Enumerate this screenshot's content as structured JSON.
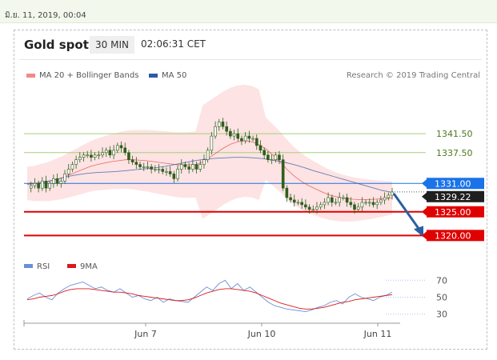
{
  "timestamp": "มิ.ย. 11, 2019, 00:04",
  "header": {
    "title": "Gold spot",
    "interval": "30 MIN",
    "time": "02:06:31 CET"
  },
  "legend": {
    "ma20": {
      "label": "MA 20 + Bollinger Bands",
      "color": "#f08a8a"
    },
    "ma50": {
      "label": "MA 50",
      "color": "#2e5aa8"
    },
    "credit": "Research © 2019 Trading Central"
  },
  "rsi_legend": {
    "rsi": {
      "label": "RSI",
      "color": "#6a8fd8"
    },
    "ma9": {
      "label": "9MA",
      "color": "#d91a1a"
    }
  },
  "colors": {
    "candle": "#2f5e1e",
    "band": "#fde3e3",
    "support": "#e00000",
    "resistance": "#a8cf7a",
    "pivot": "#1a73e8",
    "arrow": "#2a5fa0",
    "rsi_ref": "#aac4ee"
  },
  "chart_data": [
    {
      "type": "line",
      "title": "Gold spot",
      "x_ticks": [
        "Jun 7",
        "Jun 10",
        "Jun 11"
      ],
      "ylim": [
        1316,
        1352
      ],
      "levels": [
        {
          "label": "1341.50",
          "value": 1341.5,
          "kind": "resistance"
        },
        {
          "label": "1337.50",
          "value": 1337.5,
          "kind": "resistance"
        },
        {
          "label": "1331.00",
          "value": 1331.0,
          "kind": "pivot"
        },
        {
          "label": "1329.22",
          "value": 1329.22,
          "kind": "last"
        },
        {
          "label": "1325.00",
          "value": 1325.0,
          "kind": "support"
        },
        {
          "label": "1320.00",
          "value": 1320.0,
          "kind": "support"
        }
      ],
      "price_series": [
        1330,
        1330.5,
        1331,
        1330,
        1331.5,
        1330,
        1331,
        1332,
        1331,
        1331.5,
        1333,
        1334,
        1335,
        1336,
        1336.5,
        1337,
        1337,
        1336.5,
        1337,
        1337,
        1337.5,
        1338,
        1337,
        1338,
        1339,
        1338.5,
        1337.5,
        1336,
        1335.5,
        1335,
        1334.5,
        1334.5,
        1334.5,
        1334,
        1334,
        1334,
        1333.5,
        1333.5,
        1333,
        1332,
        1334,
        1335,
        1334.5,
        1334,
        1335,
        1334,
        1335,
        1336,
        1338,
        1341,
        1343,
        1344,
        1343,
        1342,
        1341,
        1341.5,
        1340.5,
        1340,
        1341,
        1340.5,
        1340.5,
        1339,
        1338,
        1337,
        1336,
        1336,
        1337,
        1336,
        1330,
        1328,
        1327.5,
        1327,
        1327,
        1326.5,
        1326,
        1325.5,
        1325.5,
        1326,
        1326.5,
        1327,
        1328,
        1327,
        1327,
        1328,
        1328,
        1327,
        1326.5,
        1325.5,
        1326,
        1327,
        1327,
        1327,
        1326.5,
        1327,
        1327.5,
        1328,
        1328.5,
        1329.2
      ],
      "ma20_series": [
        1331,
        1331,
        1331.2,
        1331.4,
        1331.8,
        1332.2,
        1332.8,
        1333.4,
        1334,
        1334.6,
        1335,
        1335.3,
        1335.6,
        1335.8,
        1336,
        1336,
        1335.9,
        1335.8,
        1335.6,
        1335.4,
        1335.2,
        1335,
        1334.9,
        1334.9,
        1335,
        1335.5,
        1336.5,
        1337.5,
        1338.5,
        1339.3,
        1339.8,
        1340,
        1339.8,
        1339.2,
        1338.3,
        1337,
        1335.6,
        1334,
        1332.6,
        1331.5,
        1330.6,
        1329.9,
        1329.2,
        1328.6,
        1328.2,
        1327.9,
        1327.7,
        1327.6,
        1327.6,
        1327.6,
        1327.7,
        1327.8,
        1327.9
      ],
      "ma50_series": [
        1330.8,
        1331,
        1331.4,
        1331.9,
        1332.4,
        1332.8,
        1333.1,
        1333.3,
        1333.4,
        1333.5,
        1333.7,
        1333.9,
        1334.1,
        1334.3,
        1334.6,
        1335,
        1335.4,
        1335.8,
        1336.1,
        1336.3,
        1336.4,
        1336.5,
        1336.5,
        1336.4,
        1336.2,
        1335.9,
        1335.5,
        1335,
        1334.4,
        1333.7,
        1333.1,
        1332.5,
        1331.9,
        1331.3,
        1330.7,
        1330.1,
        1329.5,
        1329.1
      ],
      "rsi": {
        "ylim": [
          25,
          75
        ],
        "ticks": [
          "70",
          "50",
          "30"
        ],
        "tick_values": [
          70,
          50,
          30
        ],
        "rsi_series": [
          48,
          52,
          55,
          50,
          47,
          55,
          60,
          64,
          66,
          68,
          64,
          60,
          62,
          58,
          56,
          60,
          55,
          50,
          52,
          48,
          46,
          50,
          44,
          48,
          46,
          45,
          44,
          50,
          56,
          62,
          58,
          66,
          70,
          60,
          66,
          58,
          62,
          56,
          50,
          44,
          40,
          38,
          36,
          35,
          34,
          33,
          35,
          38,
          40,
          44,
          46,
          42,
          50,
          54,
          50,
          48,
          46,
          50,
          52,
          56
        ],
        "ma9_series": [
          47,
          48,
          50,
          51,
          52,
          54,
          57,
          59,
          60,
          60,
          60,
          59,
          58,
          57,
          56,
          56,
          55,
          54,
          52,
          51,
          50,
          49,
          48,
          47,
          46,
          46,
          47,
          49,
          52,
          55,
          57,
          59,
          60,
          60,
          59,
          58,
          57,
          55,
          52,
          49,
          46,
          43,
          41,
          39,
          37,
          36,
          36,
          37,
          38,
          40,
          42,
          44,
          45,
          47,
          48,
          49,
          50,
          51,
          52,
          53
        ]
      }
    }
  ]
}
